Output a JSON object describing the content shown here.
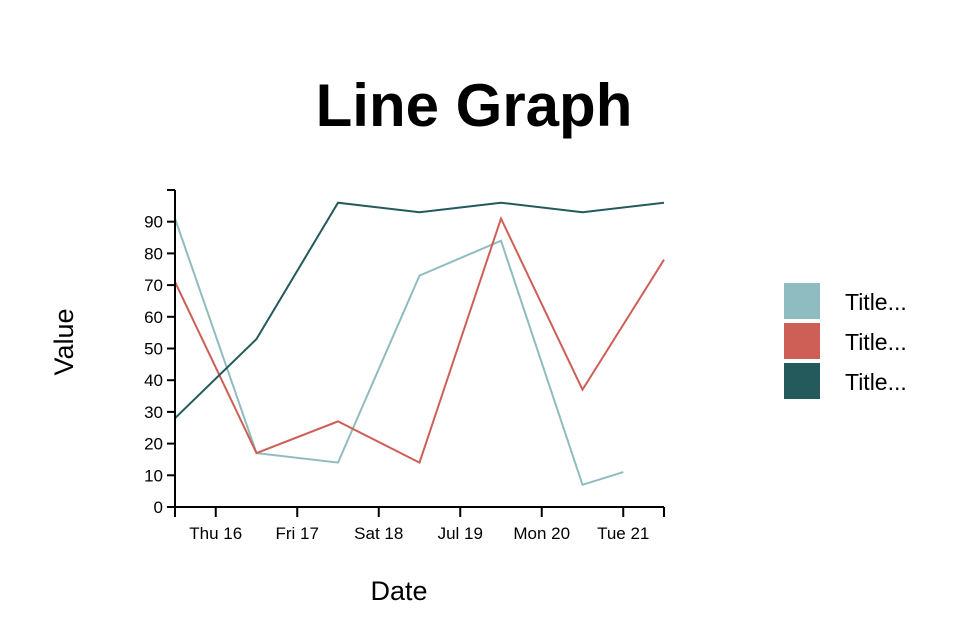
{
  "chart_data": {
    "type": "line",
    "title": "Line Graph",
    "xlabel": "Date",
    "ylabel": "Value",
    "ylim": [
      0,
      100
    ],
    "yticks": [
      0,
      10,
      20,
      30,
      40,
      50,
      60,
      70,
      80,
      90
    ],
    "x_domain": [
      0,
      6
    ],
    "xticks": [
      {
        "x": 0.5,
        "label": "Thu 16"
      },
      {
        "x": 1.5,
        "label": "Fri 17"
      },
      {
        "x": 2.5,
        "label": "Sat 18"
      },
      {
        "x": 3.5,
        "label": "Jul 19"
      },
      {
        "x": 4.5,
        "label": "Mon 20"
      },
      {
        "x": 5.5,
        "label": "Tue 21"
      }
    ],
    "series": [
      {
        "name": "Title...",
        "color": "#8fbcc0",
        "points": [
          [
            0,
            91
          ],
          [
            1,
            17
          ],
          [
            2,
            14
          ],
          [
            3,
            73
          ],
          [
            4,
            84
          ],
          [
            5,
            7
          ],
          [
            5.5,
            11
          ]
        ]
      },
      {
        "name": "Title...",
        "color": "#cd5f56",
        "points": [
          [
            0,
            71
          ],
          [
            1,
            17
          ],
          [
            2,
            27
          ],
          [
            3,
            14
          ],
          [
            4,
            91
          ],
          [
            5,
            37
          ],
          [
            6,
            78
          ]
        ]
      },
      {
        "name": "Title...",
        "color": "#245a5c",
        "points": [
          [
            0,
            28
          ],
          [
            1,
            53
          ],
          [
            2,
            96
          ],
          [
            3,
            93
          ],
          [
            4,
            96
          ],
          [
            5,
            93
          ],
          [
            6,
            96
          ]
        ]
      }
    ],
    "legend_position": "right"
  }
}
